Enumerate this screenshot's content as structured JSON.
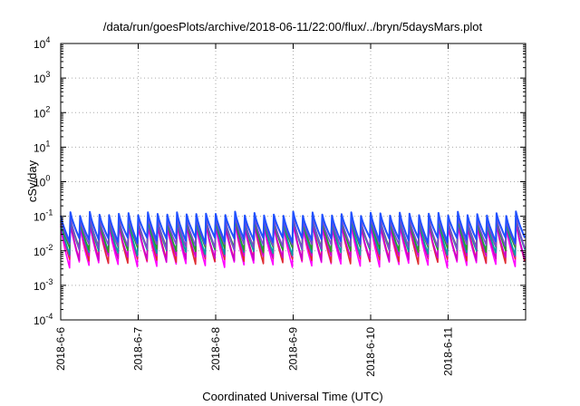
{
  "chart_data": {
    "type": "line",
    "title": "/data/run/goesPlots/archive/2018-06-11/22:00/flux/../bryn/5daysMars.plot",
    "xlabel": "Coordinated Universal Time (UTC)",
    "ylabel": "cSv/day",
    "yscale": "log",
    "ylim": [
      0.0001,
      10000
    ],
    "xlim": [
      "2018-06-06",
      "2018-06-12"
    ],
    "grid": true,
    "y_ticks": [
      {
        "base": "10",
        "exp": "-4"
      },
      {
        "base": "10",
        "exp": "-3"
      },
      {
        "base": "10",
        "exp": "-2"
      },
      {
        "base": "10",
        "exp": "-1"
      },
      {
        "base": "10",
        "exp": "0"
      },
      {
        "base": "10",
        "exp": "1"
      },
      {
        "base": "10",
        "exp": "2"
      },
      {
        "base": "10",
        "exp": "3"
      },
      {
        "base": "10",
        "exp": "4"
      }
    ],
    "x_ticks": [
      "2018-6-6",
      "2018-6-7",
      "2018-6-8",
      "2018-6-9",
      "2018-6-10",
      "2018-6-11"
    ],
    "cycles_per_day": 8,
    "series": [
      {
        "color": "#ff00ff",
        "peak": 0.06,
        "trough": 0.004
      },
      {
        "color": "#e03030",
        "peak": 0.07,
        "trough": 0.005
      },
      {
        "color": "#cc00cc",
        "peak": 0.06,
        "trough": 0.006
      },
      {
        "color": "#00a0a0",
        "peak": 0.08,
        "trough": 0.009
      },
      {
        "color": "#2a9a2a",
        "peak": 0.085,
        "trough": 0.011
      },
      {
        "color": "#7a4ad0",
        "peak": 0.09,
        "trough": 0.013
      },
      {
        "color": "#2050ff",
        "peak": 0.12,
        "trough": 0.02
      }
    ]
  }
}
